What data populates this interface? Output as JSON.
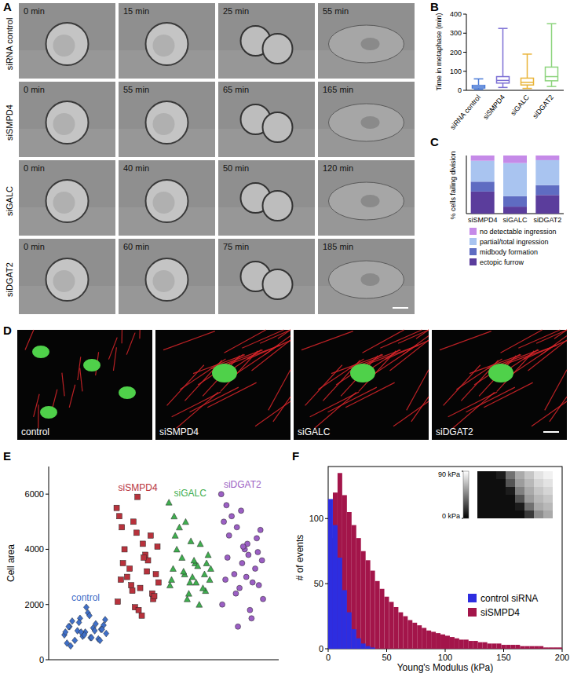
{
  "figure": {
    "letters": [
      "A",
      "B",
      "C",
      "D",
      "E",
      "F"
    ],
    "panel_a": {
      "rows": [
        {
          "label": "siRNA control",
          "times": [
            "0 min",
            "15 min",
            "25 min",
            "55 min"
          ]
        },
        {
          "label": "siSMPD4",
          "times": [
            "0 min",
            "55 min",
            "65 min",
            "165 min"
          ]
        },
        {
          "label": "siGALC",
          "times": [
            "0 min",
            "40 min",
            "50 min",
            "120 min"
          ]
        },
        {
          "label": "siDGAT2",
          "times": [
            "0 min",
            "60 min",
            "75 min",
            "185 min"
          ]
        }
      ]
    },
    "panel_d": {
      "labels": [
        "control",
        "siSMPD4",
        "siGALC",
        "siDGAT2"
      ]
    }
  },
  "chart_data": [
    {
      "type": "box",
      "ylabel": "Time in metaphase (min)",
      "categories": [
        "siRNA control",
        "siSMPD4",
        "siGALC",
        "siDGAT2"
      ],
      "colors": [
        "#4b7bd6",
        "#7c6fd4",
        "#e9b336",
        "#8dd47d"
      ],
      "min": [
        5,
        15,
        10,
        20
      ],
      "q1": [
        12,
        38,
        28,
        50
      ],
      "median": [
        18,
        52,
        42,
        72
      ],
      "q3": [
        26,
        72,
        64,
        122
      ],
      "max": [
        60,
        325,
        190,
        350
      ],
      "ylim": [
        0,
        400
      ],
      "yticks": [
        0,
        100,
        200,
        300,
        400
      ]
    },
    {
      "type": "bar",
      "stacked": true,
      "ylabel": "% cells failing division",
      "categories": [
        "siSMPD4",
        "siGALC",
        "siDGAT2"
      ],
      "series": [
        {
          "name": "ectopic furrow",
          "color": "#5b3d9c",
          "values": [
            38,
            12,
            32
          ]
        },
        {
          "name": "midbody formation",
          "color": "#5f6cc2",
          "values": [
            17,
            18,
            17
          ]
        },
        {
          "name": "partial/total ingression",
          "color": "#a9c4f0",
          "values": [
            36,
            57,
            43
          ]
        },
        {
          "name": "no detectable ingression",
          "color": "#c58ae8",
          "values": [
            9,
            13,
            8
          ]
        }
      ],
      "ylim": [
        0,
        100
      ],
      "tick_labels": "x",
      "legend": "bottom"
    },
    {
      "type": "scatter",
      "ylabel": "Cell area",
      "xlim": [
        0.3,
        4.7
      ],
      "ylim": [
        0,
        7000
      ],
      "yticks": [
        0,
        2000,
        4000,
        6000
      ],
      "tick_labels": "y",
      "series": [
        {
          "name": "control",
          "color": "#3f6fc8",
          "marker": "diamond",
          "x": [
            0.6,
            0.7,
            0.8,
            0.9,
            1.0,
            1.1,
            1.2,
            1.3,
            1.4,
            0.65,
            0.75,
            0.85,
            0.95,
            1.05,
            1.15,
            1.25,
            1.35,
            0.62,
            0.72,
            0.88,
            0.98,
            1.08,
            1.18,
            1.28,
            1.38,
            0.68,
            0.92,
            1.12,
            1.32,
            1.02
          ],
          "values": [
            900,
            1200,
            700,
            1500,
            1000,
            800,
            1300,
            1100,
            950,
            600,
            1400,
            1050,
            850,
            1700,
            1150,
            750,
            1250,
            1000,
            500,
            1350,
            900,
            1600,
            1050,
            700,
            1450,
            1200,
            1000,
            800,
            1100,
            1900
          ]
        },
        {
          "name": "siSMPD4",
          "color": "#b8323c",
          "marker": "square",
          "x": [
            1.6,
            1.7,
            1.8,
            1.9,
            2.0,
            2.1,
            2.2,
            2.3,
            2.4,
            1.65,
            1.75,
            1.85,
            1.95,
            2.05,
            2.15,
            2.25,
            2.35,
            1.62,
            1.72,
            1.88,
            1.98,
            2.08,
            2.18,
            2.28,
            2.38,
            1.68,
            1.92,
            2.12,
            2.32,
            2.02
          ],
          "values": [
            5500,
            4800,
            3000,
            2500,
            5900,
            4200,
            3600,
            2200,
            2800,
            5200,
            4000,
            3300,
            1900,
            2600,
            3800,
            4500,
            3100,
            2100,
            3500,
            2700,
            4600,
            1600,
            3200,
            2400,
            4100,
            2900,
            5000,
            3700,
            2300,
            1800
          ]
        },
        {
          "name": "siGALC",
          "color": "#3fae4f",
          "marker": "triangle",
          "x": [
            2.6,
            2.7,
            2.8,
            2.9,
            3.0,
            3.1,
            3.2,
            3.3,
            3.4,
            2.65,
            2.75,
            2.85,
            2.95,
            3.05,
            3.15,
            3.25,
            3.35,
            2.62,
            2.72,
            2.88,
            2.98,
            3.08,
            3.18,
            3.28,
            3.38,
            2.68,
            2.92,
            3.12,
            3.32,
            3.02
          ],
          "values": [
            5700,
            5200,
            4800,
            3100,
            2800,
            3500,
            4200,
            2500,
            3300,
            2900,
            4000,
            3700,
            2200,
            3000,
            3400,
            2600,
            3800,
            2700,
            4500,
            3200,
            2400,
            3600,
            2000,
            3100,
            2900,
            3300,
            5000,
            2800,
            3500,
            4300
          ]
        },
        {
          "name": "siDGAT2",
          "color": "#9b5fc4",
          "marker": "circle",
          "x": [
            3.6,
            3.7,
            3.8,
            3.9,
            4.0,
            4.1,
            4.2,
            4.3,
            4.4,
            3.65,
            3.75,
            3.85,
            3.95,
            4.05,
            4.15,
            4.25,
            4.35,
            3.62,
            3.72,
            3.88,
            3.98,
            4.08,
            4.18,
            4.28,
            4.38,
            3.68,
            3.92,
            4.12,
            4.32,
            4.02
          ],
          "values": [
            6000,
            5600,
            5200,
            4800,
            3500,
            4200,
            2800,
            3900,
            2200,
            5000,
            4500,
            3100,
            2600,
            4000,
            1800,
            3300,
            4700,
            2000,
            3700,
            2400,
            5400,
            3000,
            1500,
            4400,
            3600,
            2900,
            1200,
            3800,
            2700,
            4100
          ]
        }
      ]
    },
    {
      "type": "histogram",
      "xlabel": "Young's Modulus (kPa)",
      "ylabel": "# of events",
      "xlim": [
        0,
        200
      ],
      "xticks": [
        0,
        50,
        100,
        150,
        200
      ],
      "ylim": [
        0,
        140
      ],
      "yticks": [
        0,
        50,
        100
      ],
      "legend": "lower right",
      "bins": [
        0,
        4,
        8,
        12,
        16,
        20,
        24,
        28,
        32,
        36,
        40,
        44,
        48,
        52,
        56,
        60,
        64,
        68,
        72,
        76,
        80,
        84,
        88,
        92,
        96,
        100,
        104,
        108,
        112,
        116,
        120,
        124,
        128,
        132,
        136,
        140,
        144,
        148,
        152,
        156,
        160,
        164,
        168,
        172,
        176,
        180,
        184,
        188,
        192,
        196,
        200
      ],
      "series": [
        {
          "name": "control siRNA",
          "color": "#2d2de0",
          "values": [
            115,
            95,
            70,
            45,
            28,
            15,
            8,
            4,
            2,
            1,
            0,
            0,
            0,
            0,
            0,
            0,
            0,
            0,
            0,
            0,
            0,
            0,
            0,
            0,
            0,
            0,
            0,
            0,
            0,
            0,
            0,
            0,
            0,
            0,
            0,
            0,
            0,
            0,
            0,
            0,
            0,
            0,
            0,
            0,
            0,
            0,
            0,
            0,
            0,
            0
          ]
        },
        {
          "name": "siSMPD4",
          "color": "#a3154a",
          "values": [
            85,
            120,
            135,
            118,
            105,
            95,
            85,
            75,
            68,
            60,
            52,
            46,
            40,
            36,
            32,
            28,
            25,
            22,
            20,
            18,
            16,
            14,
            13,
            12,
            11,
            10,
            9,
            8,
            7,
            7,
            6,
            6,
            5,
            5,
            4,
            4,
            4,
            3,
            3,
            3,
            3,
            2,
            2,
            2,
            2,
            2,
            1,
            1,
            1,
            1
          ]
        }
      ],
      "inset": {
        "cells": [
          [
            5,
            5,
            10,
            40,
            60,
            70,
            80,
            85
          ],
          [
            5,
            5,
            5,
            30,
            55,
            65,
            75,
            80
          ],
          [
            5,
            5,
            5,
            10,
            45,
            60,
            70,
            75
          ],
          [
            5,
            5,
            5,
            5,
            30,
            55,
            65,
            70
          ],
          [
            5,
            5,
            5,
            5,
            10,
            40,
            60,
            65
          ],
          [
            5,
            5,
            5,
            5,
            5,
            20,
            50,
            60
          ]
        ],
        "colorbar_range": [
          0,
          90
        ],
        "colorbar_ticks": [
          {
            "value": 90,
            "label": "90 kPa"
          },
          {
            "value": 0,
            "label": "0 kPa"
          }
        ]
      }
    }
  ]
}
